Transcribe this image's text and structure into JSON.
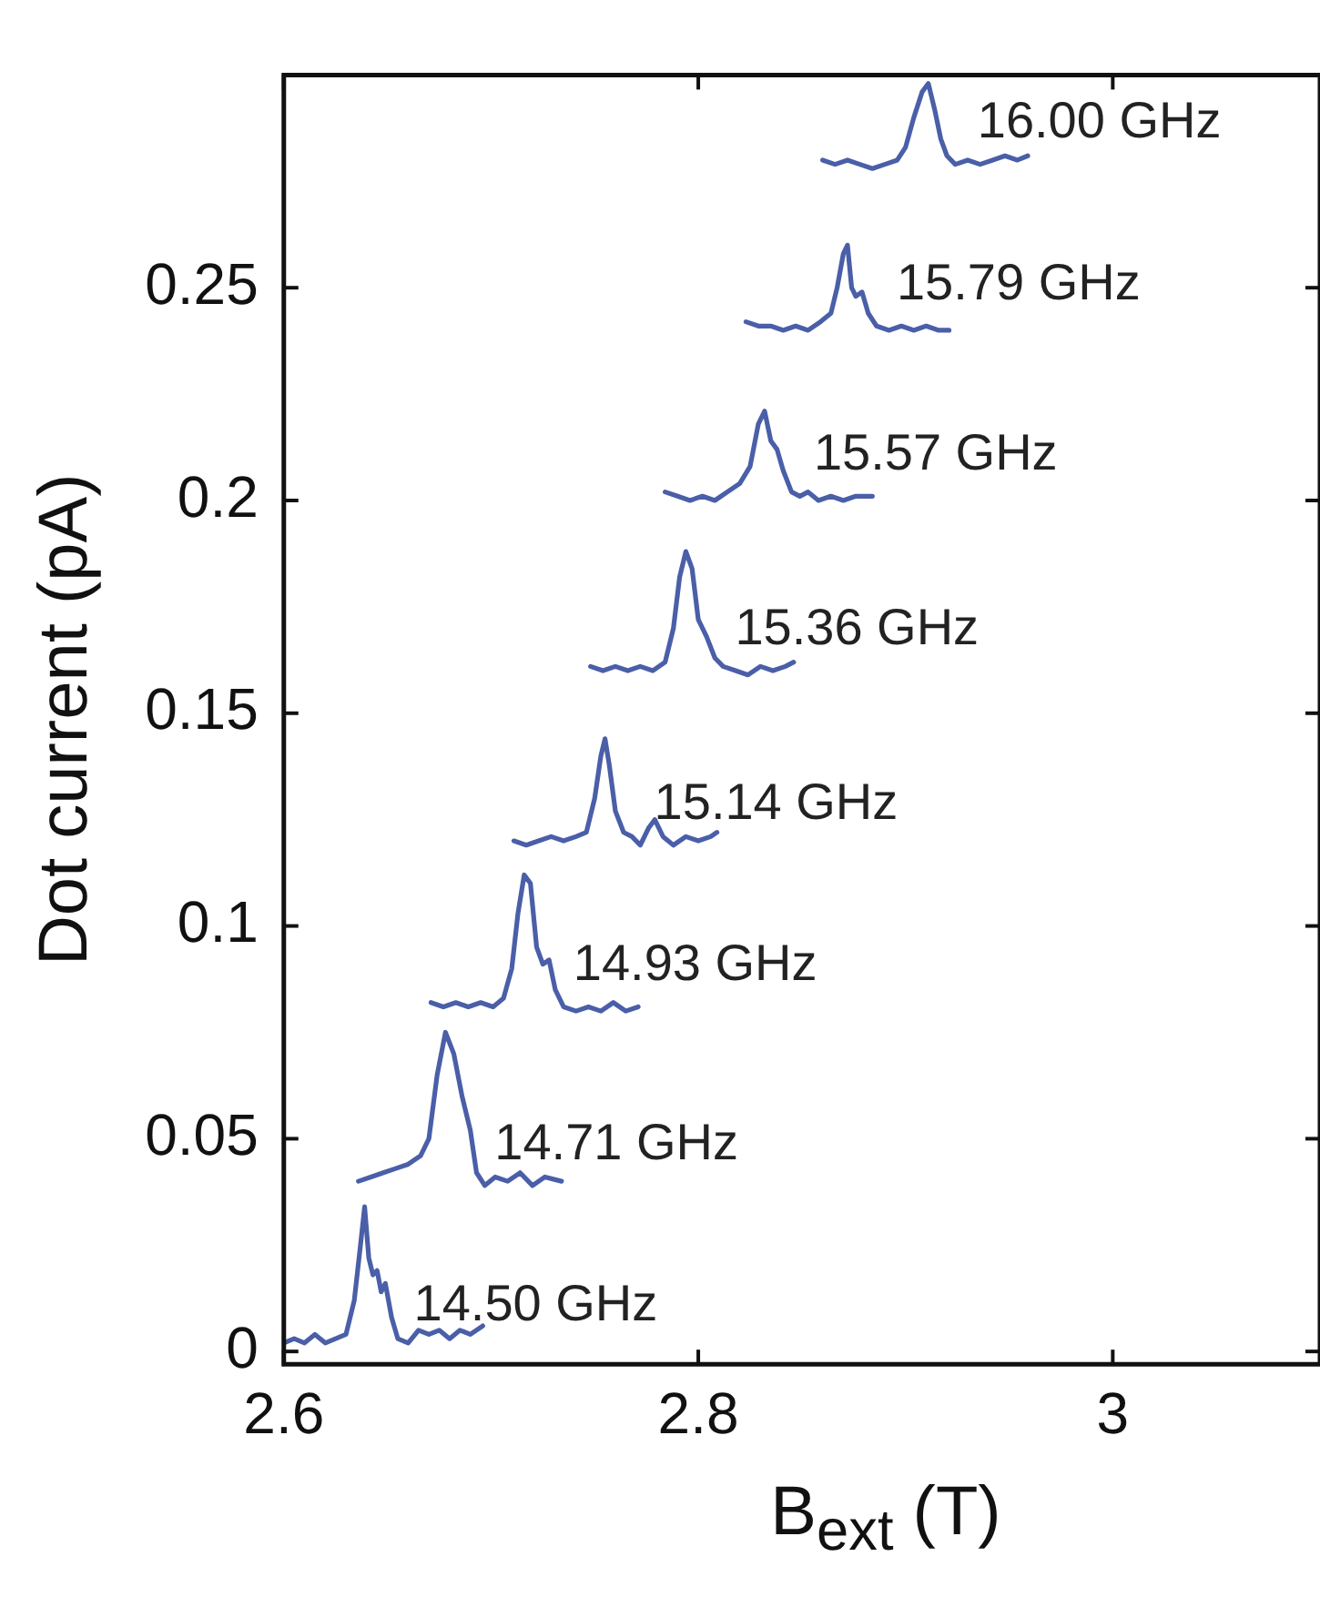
{
  "chart_data": {
    "type": "line",
    "xlabel": "B$_{ext}$ (T)",
    "ylabel": "Dot current (pA)",
    "xlim": [
      2.6,
      3.1
    ],
    "ylim": [
      -0.003,
      0.3
    ],
    "xticks": [
      2.6,
      2.8,
      3
    ],
    "yticks": [
      0,
      0.05,
      0.1,
      0.15,
      0.2,
      0.25
    ],
    "grid": false,
    "legend": false,
    "marker": "none",
    "line_style": "solid",
    "series": [
      {
        "name": "14.50 GHz",
        "color": "#4a5fa8",
        "x": [
          2.6,
          2.605,
          2.61,
          2.615,
          2.62,
          2.625,
          2.63,
          2.634,
          2.637,
          2.639,
          2.641,
          2.643,
          2.645,
          2.647,
          2.649,
          2.652,
          2.655,
          2.66,
          2.665,
          2.67,
          2.675,
          2.68,
          2.685,
          2.69,
          2.696
        ],
        "values": [
          0.002,
          0.003,
          0.002,
          0.004,
          0.002,
          0.003,
          0.004,
          0.012,
          0.025,
          0.034,
          0.022,
          0.018,
          0.019,
          0.014,
          0.016,
          0.008,
          0.003,
          0.002,
          0.005,
          0.004,
          0.005,
          0.003,
          0.005,
          0.004,
          0.006
        ]
      },
      {
        "name": "14.71 GHz",
        "color": "#4a5fa8",
        "x": [
          2.636,
          2.642,
          2.648,
          2.654,
          2.66,
          2.666,
          2.67,
          2.674,
          2.678,
          2.682,
          2.686,
          2.69,
          2.693,
          2.697,
          2.702,
          2.708,
          2.714,
          2.72,
          2.726,
          2.734
        ],
        "values": [
          0.04,
          0.041,
          0.042,
          0.043,
          0.044,
          0.046,
          0.05,
          0.065,
          0.075,
          0.07,
          0.06,
          0.052,
          0.042,
          0.039,
          0.041,
          0.04,
          0.042,
          0.039,
          0.041,
          0.04
        ]
      },
      {
        "name": "14.93 GHz",
        "color": "#4a5fa8",
        "x": [
          2.671,
          2.677,
          2.683,
          2.689,
          2.695,
          2.701,
          2.706,
          2.71,
          2.713,
          2.716,
          2.719,
          2.722,
          2.725,
          2.728,
          2.731,
          2.735,
          2.741,
          2.747,
          2.753,
          2.759,
          2.765,
          2.771
        ],
        "values": [
          0.082,
          0.081,
          0.082,
          0.081,
          0.082,
          0.081,
          0.083,
          0.09,
          0.103,
          0.112,
          0.11,
          0.095,
          0.091,
          0.092,
          0.085,
          0.081,
          0.08,
          0.081,
          0.08,
          0.082,
          0.08,
          0.081
        ]
      },
      {
        "name": "15.14 GHz",
        "color": "#4a5fa8",
        "x": [
          2.711,
          2.717,
          2.723,
          2.729,
          2.735,
          2.741,
          2.746,
          2.75,
          2.753,
          2.755,
          2.757,
          2.76,
          2.764,
          2.768,
          2.772,
          2.776,
          2.779,
          2.783,
          2.788,
          2.794,
          2.8,
          2.806,
          2.809
        ],
        "values": [
          0.12,
          0.119,
          0.12,
          0.121,
          0.12,
          0.121,
          0.122,
          0.13,
          0.14,
          0.144,
          0.138,
          0.127,
          0.122,
          0.121,
          0.119,
          0.123,
          0.125,
          0.121,
          0.119,
          0.121,
          0.12,
          0.121,
          0.122
        ]
      },
      {
        "name": "15.36 GHz",
        "color": "#4a5fa8",
        "x": [
          2.748,
          2.754,
          2.76,
          2.766,
          2.772,
          2.778,
          2.784,
          2.788,
          2.791,
          2.794,
          2.797,
          2.8,
          2.804,
          2.808,
          2.812,
          2.818,
          2.824,
          2.83,
          2.836,
          2.842,
          2.846
        ],
        "values": [
          0.161,
          0.16,
          0.161,
          0.16,
          0.161,
          0.16,
          0.162,
          0.17,
          0.182,
          0.188,
          0.184,
          0.172,
          0.168,
          0.163,
          0.161,
          0.16,
          0.159,
          0.161,
          0.16,
          0.161,
          0.162
        ]
      },
      {
        "name": "15.57 GHz",
        "color": "#4a5fa8",
        "x": [
          2.784,
          2.79,
          2.796,
          2.802,
          2.808,
          2.814,
          2.82,
          2.825,
          2.829,
          2.832,
          2.835,
          2.838,
          2.841,
          2.845,
          2.849,
          2.853,
          2.858,
          2.864,
          2.87,
          2.876,
          2.884
        ],
        "values": [
          0.202,
          0.201,
          0.2,
          0.201,
          0.2,
          0.202,
          0.204,
          0.208,
          0.218,
          0.221,
          0.214,
          0.212,
          0.207,
          0.202,
          0.201,
          0.202,
          0.2,
          0.201,
          0.2,
          0.201,
          0.201
        ]
      },
      {
        "name": "15.79 GHz",
        "color": "#4a5fa8",
        "x": [
          2.823,
          2.829,
          2.835,
          2.841,
          2.847,
          2.853,
          2.859,
          2.864,
          2.867,
          2.87,
          2.872,
          2.874,
          2.876,
          2.879,
          2.882,
          2.886,
          2.892,
          2.898,
          2.904,
          2.91,
          2.916,
          2.921
        ],
        "values": [
          0.242,
          0.241,
          0.241,
          0.24,
          0.241,
          0.24,
          0.242,
          0.244,
          0.25,
          0.258,
          0.26,
          0.25,
          0.248,
          0.249,
          0.244,
          0.241,
          0.24,
          0.241,
          0.24,
          0.241,
          0.24,
          0.24
        ]
      },
      {
        "name": "16.00 GHz",
        "color": "#4a5fa8",
        "x": [
          2.86,
          2.866,
          2.872,
          2.878,
          2.884,
          2.89,
          2.896,
          2.9,
          2.904,
          2.908,
          2.911,
          2.914,
          2.917,
          2.92,
          2.924,
          2.93,
          2.936,
          2.942,
          2.948,
          2.954,
          2.959
        ],
        "values": [
          0.28,
          0.279,
          0.28,
          0.279,
          0.278,
          0.279,
          0.28,
          0.283,
          0.29,
          0.296,
          0.298,
          0.292,
          0.285,
          0.281,
          0.279,
          0.28,
          0.279,
          0.28,
          0.281,
          0.28,
          0.281
        ]
      }
    ]
  }
}
